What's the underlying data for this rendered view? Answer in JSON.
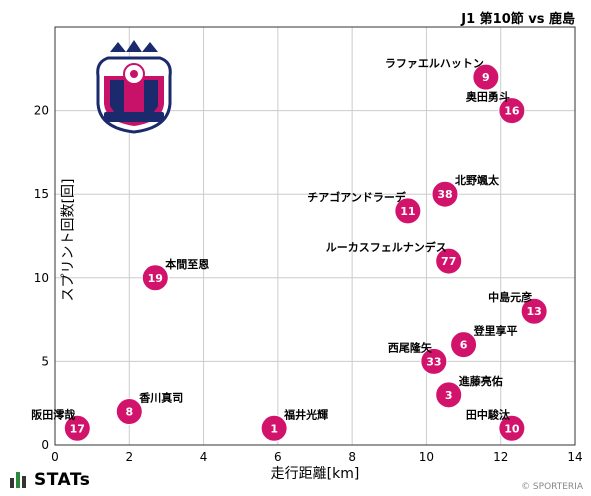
{
  "header": {
    "title": "J1 第10節 vs 鹿島"
  },
  "footer": {
    "brand": "STATs",
    "copyright": "© SPORTERIA"
  },
  "colors": {
    "point": "#d2136b",
    "grid": "#cccccc",
    "crest_magenta": "#c8126a",
    "crest_navy": "#1a2a6c"
  },
  "chart_data": {
    "type": "scatter",
    "title": "J1 第10節 vs 鹿島",
    "xlabel": "走行距離[km]",
    "ylabel": "スプリント回数[回]",
    "xlim": [
      0,
      14
    ],
    "ylim": [
      0,
      25
    ],
    "xticks": [
      0,
      2,
      4,
      6,
      8,
      10,
      12,
      14
    ],
    "yticks": [
      0,
      5,
      10,
      15,
      20
    ],
    "grid": true,
    "points": [
      {
        "number": "9",
        "name": "ラファエルハットン",
        "x": 11.6,
        "y": 22
      },
      {
        "number": "16",
        "name": "奥田勇斗",
        "x": 12.3,
        "y": 20
      },
      {
        "number": "38",
        "name": "北野颯太",
        "x": 10.5,
        "y": 15
      },
      {
        "number": "11",
        "name": "チアゴアンドラーデ",
        "x": 9.5,
        "y": 14
      },
      {
        "number": "77",
        "name": "ルーカスフェルナンデス",
        "x": 10.6,
        "y": 11
      },
      {
        "number": "19",
        "name": "本間至恩",
        "x": 2.7,
        "y": 10
      },
      {
        "number": "13",
        "name": "中島元彦",
        "x": 12.9,
        "y": 8
      },
      {
        "number": "6",
        "name": "登里享平",
        "x": 11.0,
        "y": 6
      },
      {
        "number": "33",
        "name": "西尾隆矢",
        "x": 10.2,
        "y": 5
      },
      {
        "number": "3",
        "name": "進藤亮佑",
        "x": 10.6,
        "y": 3
      },
      {
        "number": "8",
        "name": "香川真司",
        "x": 2.0,
        "y": 2
      },
      {
        "number": "17",
        "name": "阪田澪哉",
        "x": 0.6,
        "y": 1
      },
      {
        "number": "1",
        "name": "福井光輝",
        "x": 5.9,
        "y": 1
      },
      {
        "number": "10",
        "name": "田中駿汰",
        "x": 12.3,
        "y": 1
      }
    ]
  }
}
